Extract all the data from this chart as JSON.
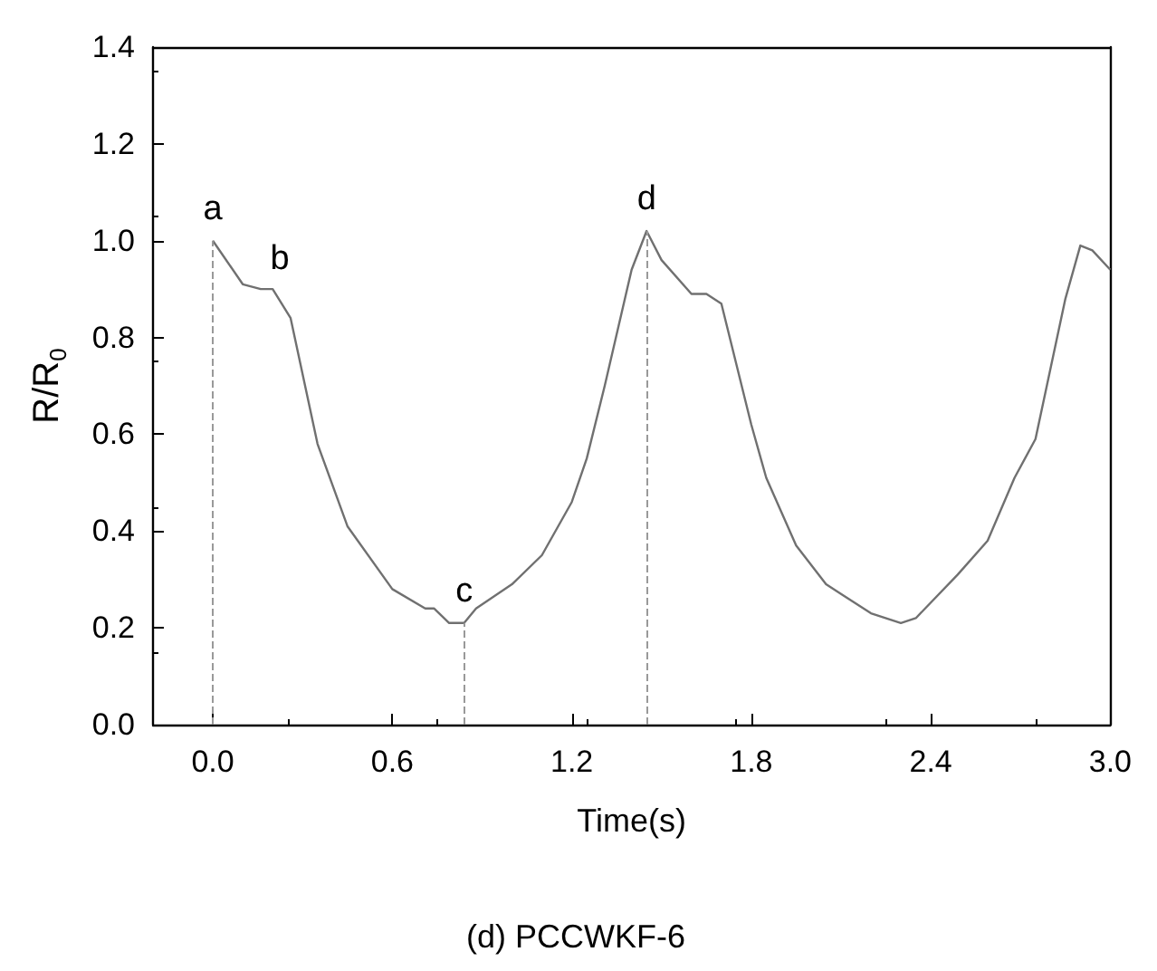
{
  "chart_data": {
    "type": "line",
    "xlabel": "Time(s)",
    "ylabel": "R/R$_{0}$",
    "x": [
      0,
      0.1,
      0.16,
      0.2,
      0.26,
      0.35,
      0.45,
      0.6,
      0.71,
      0.74,
      0.79,
      0.84,
      0.88,
      1.0,
      1.1,
      1.2,
      1.25,
      1.31,
      1.4,
      1.45,
      1.5,
      1.6,
      1.65,
      1.7,
      1.8,
      1.85,
      1.95,
      2.05,
      2.1,
      2.2,
      2.3,
      2.35,
      2.49,
      2.59,
      2.68,
      2.75,
      2.85,
      2.9,
      2.94,
      3.0
    ],
    "series": [
      {
        "color": "#707070",
        "values": [
          1.0,
          0.91,
          0.9,
          0.9,
          0.84,
          0.58,
          0.41,
          0.28,
          0.24,
          0.24,
          0.21,
          0.21,
          0.24,
          0.29,
          0.35,
          0.46,
          0.55,
          0.7,
          0.94,
          1.02,
          0.96,
          0.89,
          0.89,
          0.87,
          0.62,
          0.51,
          0.37,
          0.29,
          0.27,
          0.23,
          0.21,
          0.22,
          0.31,
          0.38,
          0.51,
          0.59,
          0.88,
          0.99,
          0.98,
          0.94
        ]
      }
    ],
    "xlim": [
      -0.2,
      3.0
    ],
    "xticks": [
      {
        "value": 0,
        "label": "0.0"
      },
      0.6,
      1.2,
      1.8,
      2.4,
      {
        "value": 3,
        "label": "3.0"
      }
    ],
    "ylim": [
      0,
      1.4
    ],
    "yticks": [
      {
        "value": 0,
        "label": "0.0"
      },
      0.2,
      0.4,
      0.6,
      0.8,
      {
        "value": 1,
        "label": "1.0"
      },
      1.2,
      1.4
    ],
    "ref_lines": [
      {
        "axis": "x",
        "value": 0,
        "label": "a",
        "line_style": "dashed",
        "color": "#999999"
      },
      {
        "axis": "x",
        "value": 0.84,
        "label": "c",
        "line_style": "dashed",
        "color": "#999999"
      },
      {
        "axis": "x",
        "value": 1.45,
        "label": "d",
        "line_style": "dashed",
        "color": "#999999"
      }
    ],
    "annotations": [
      {
        "text": "b",
        "x": 0.2,
        "y": 0.9
      },
      "(d) PCCWKF-6"
    ],
    "grid": false,
    "marker": "none",
    "line_style": "solid"
  }
}
